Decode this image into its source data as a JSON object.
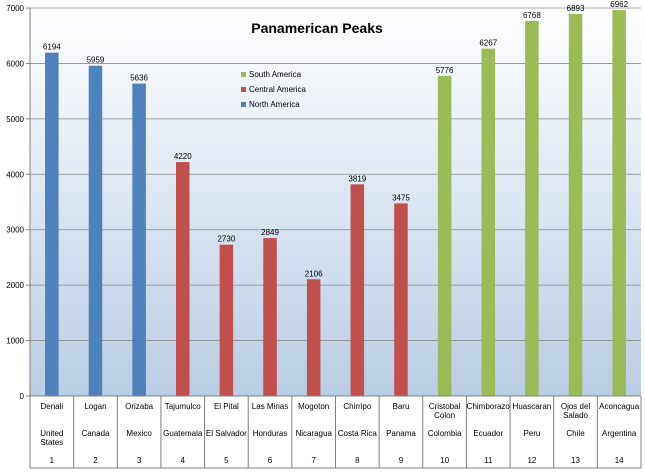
{
  "chart_data": {
    "type": "bar",
    "title": "Panamerican Peaks",
    "xlabel": "",
    "ylabel": "",
    "ylim": [
      0,
      7000
    ],
    "yticks": [
      0,
      1000,
      2000,
      3000,
      4000,
      5000,
      6000,
      7000
    ],
    "grid": true,
    "legend_position": "top-center",
    "legend": [
      {
        "name": "South America",
        "color": "#9bbb59"
      },
      {
        "name": "Central America",
        "color": "#c0504d"
      },
      {
        "name": "North America",
        "color": "#4f81bd"
      }
    ],
    "categories": [
      {
        "peak": [
          "Denali"
        ],
        "country": [
          "United",
          "States"
        ],
        "index": "1",
        "region": "North America"
      },
      {
        "peak": [
          "Logan"
        ],
        "country": [
          "Canada"
        ],
        "index": "2",
        "region": "North America"
      },
      {
        "peak": [
          "Orizaba"
        ],
        "country": [
          "Mexico"
        ],
        "index": "3",
        "region": "North America"
      },
      {
        "peak": [
          "Tajumulco"
        ],
        "country": [
          "Guatemala"
        ],
        "index": "4",
        "region": "Central America"
      },
      {
        "peak": [
          "El Pital"
        ],
        "country": [
          "El Salvador"
        ],
        "index": "5",
        "region": "Central America"
      },
      {
        "peak": [
          "Las Minas"
        ],
        "country": [
          "Honduras"
        ],
        "index": "6",
        "region": "Central America"
      },
      {
        "peak": [
          "Mogoton"
        ],
        "country": [
          "Nicaragua"
        ],
        "index": "7",
        "region": "Central America"
      },
      {
        "peak": [
          "Chirripo"
        ],
        "country": [
          "Costa Rica"
        ],
        "index": "8",
        "region": "Central America"
      },
      {
        "peak": [
          "Baru"
        ],
        "country": [
          "Panama"
        ],
        "index": "9",
        "region": "Central America"
      },
      {
        "peak": [
          "Cristobal",
          "Colon"
        ],
        "country": [
          "Colombia"
        ],
        "index": "10",
        "region": "South America"
      },
      {
        "peak": [
          "Chimborazo"
        ],
        "country": [
          "Ecuador"
        ],
        "index": "11",
        "region": "South America"
      },
      {
        "peak": [
          "Huascaran"
        ],
        "country": [
          "Peru"
        ],
        "index": "12",
        "region": "South America"
      },
      {
        "peak": [
          "Ojos del",
          "Salado"
        ],
        "country": [
          "Chile"
        ],
        "index": "13",
        "region": "South America"
      },
      {
        "peak": [
          "Aconcagua"
        ],
        "country": [
          "Argentina"
        ],
        "index": "14",
        "region": "South America"
      }
    ],
    "values": [
      6194,
      5959,
      5636,
      4220,
      2730,
      2849,
      2106,
      3819,
      3475,
      5776,
      6267,
      6768,
      6893,
      6962
    ]
  }
}
